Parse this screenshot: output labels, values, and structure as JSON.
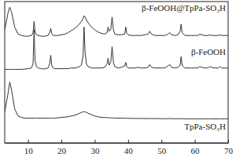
{
  "chart_data": {
    "type": "line",
    "x": [
      3,
      4,
      4.5,
      5,
      6,
      7,
      8,
      9,
      10,
      11,
      11.5,
      11.8,
      12.1,
      12.5,
      13,
      14,
      15,
      16,
      16.5,
      16.8,
      17.1,
      17.5,
      18,
      19,
      20,
      21,
      22,
      23,
      24,
      25,
      26,
      26.5,
      26.8,
      27.1,
      27.5,
      28,
      29,
      30,
      31,
      32,
      33,
      33.7,
      34,
      34.3,
      34.8,
      35.2,
      35.6,
      36,
      37,
      38,
      39,
      39.3,
      39.6,
      40,
      41,
      42,
      43,
      44,
      45,
      46,
      46.5,
      47,
      48,
      49,
      50,
      51,
      52,
      52.5,
      53,
      54,
      55,
      55.6,
      55.9,
      56.2,
      57,
      58,
      59,
      60,
      61,
      61.5,
      62,
      63,
      64,
      64.5,
      65,
      66,
      67,
      67.5,
      68,
      69,
      70
    ],
    "series": [
      {
        "name": "β-FeOOH@TpPa-SO₃H",
        "color": "#333333",
        "values": [
          80,
          92,
          96,
          93,
          82,
          77,
          76,
          75.5,
          75.5,
          76,
          78,
          86,
          79,
          76.5,
          76,
          75.5,
          75.5,
          76,
          78,
          81,
          77.5,
          76,
          76,
          76,
          76.5,
          77,
          78,
          79.5,
          81,
          83,
          86,
          88,
          90,
          89,
          87,
          85,
          82,
          80,
          78.5,
          77.5,
          77,
          78,
          82,
          79,
          80,
          89,
          80,
          77,
          76.5,
          76.5,
          77,
          82,
          77.5,
          76.5,
          76,
          76,
          76,
          76,
          76.5,
          77,
          79,
          77,
          76,
          76,
          76,
          76,
          77,
          78,
          76.5,
          76,
          76.5,
          79,
          84,
          78,
          76,
          76,
          76,
          76,
          76,
          77,
          76.5,
          76,
          76,
          76.5,
          76,
          76,
          76,
          76.5,
          76,
          76,
          76
        ]
      },
      {
        "name": "β-FeOOH",
        "color": "#333333",
        "values": [
          52,
          52,
          52,
          52,
          52,
          52,
          52,
          52.2,
          52.5,
          53,
          56,
          80,
          58,
          54,
          53,
          52.5,
          52.3,
          53,
          56,
          62,
          55,
          53,
          52.5,
          52.5,
          52.5,
          52.5,
          52.5,
          53,
          53,
          53.5,
          55,
          62,
          82,
          64,
          56,
          54,
          53,
          53,
          53,
          53,
          53.5,
          56,
          60,
          55,
          57,
          68,
          57,
          54,
          53,
          53.5,
          54.5,
          57,
          54,
          53,
          53,
          53,
          53.5,
          53,
          53,
          53.5,
          55.5,
          53.5,
          53,
          53,
          53,
          53,
          54.5,
          55.5,
          53.5,
          53,
          53.5,
          55,
          61,
          55,
          53,
          53,
          53,
          53,
          53,
          54,
          53.5,
          53,
          53,
          54,
          53.5,
          53,
          53,
          54,
          53,
          53,
          53
        ]
      },
      {
        "name": "TpPa-SO₃H",
        "color": "#333333",
        "values": [
          22,
          35,
          43,
          38,
          24,
          19,
          18,
          17.5,
          17.5,
          17.5,
          17.5,
          17.5,
          17.5,
          17.5,
          17.5,
          17.5,
          17.5,
          17.5,
          17.5,
          17.5,
          17.5,
          17.5,
          17.5,
          17.8,
          18,
          18.2,
          18.5,
          19,
          19.5,
          20.5,
          21.5,
          22,
          22,
          22,
          21.5,
          21,
          20,
          19,
          18.5,
          18,
          18,
          17.8,
          17.8,
          17.8,
          17.7,
          17.7,
          17.6,
          17.6,
          17.5,
          17.5,
          17.5,
          17.4,
          17.4,
          17.4,
          17.3,
          17.3,
          17.3,
          17.3,
          17.2,
          17.2,
          17.3,
          17.2,
          17.2,
          17.2,
          17.1,
          17.1,
          17.2,
          17.2,
          17.1,
          17.1,
          17.1,
          17.1,
          17.2,
          17.1,
          17,
          17,
          17,
          17,
          17,
          17,
          17,
          17,
          17,
          17,
          17,
          17,
          17,
          17,
          17,
          17,
          17
        ]
      }
    ],
    "xlim": [
      3,
      70
    ],
    "xticks": [
      10,
      20,
      30,
      40,
      50,
      60,
      70
    ],
    "ylim": [
      0,
      100
    ],
    "tick_labels": "x"
  }
}
